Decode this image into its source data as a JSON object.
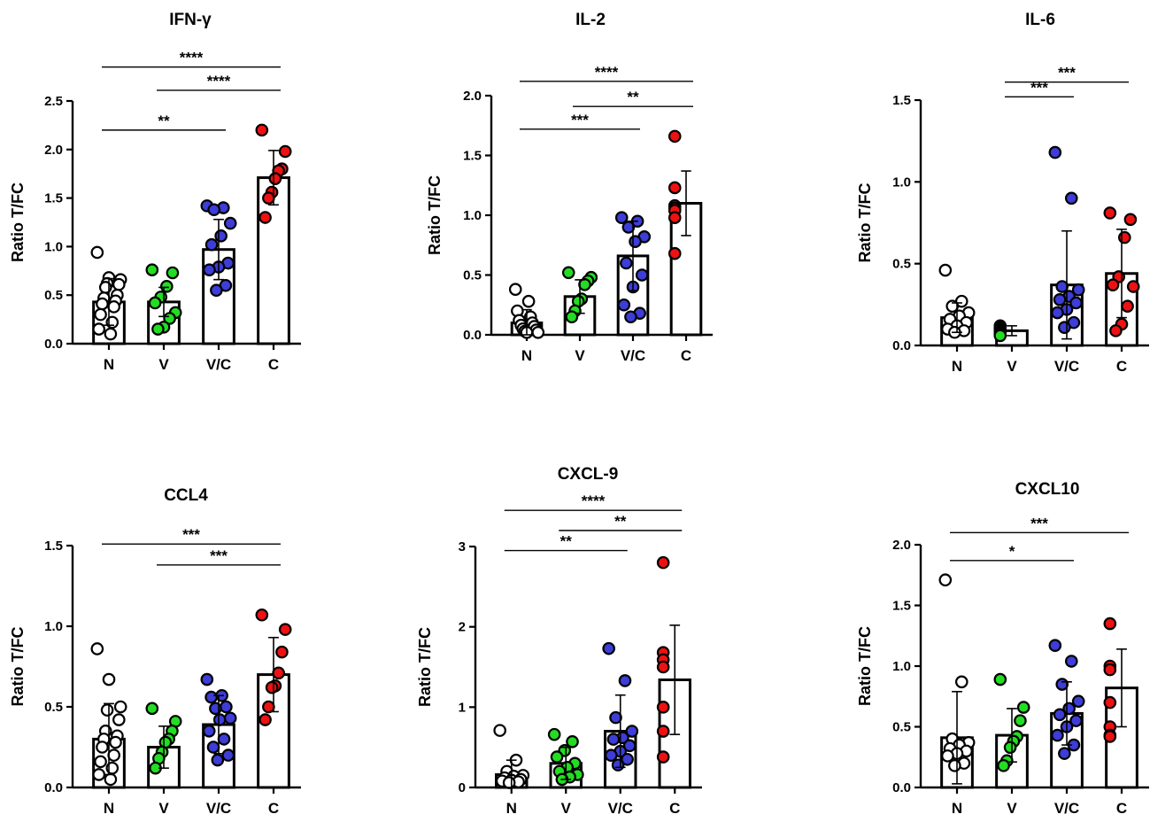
{
  "figure": {
    "background": "#ffffff"
  },
  "colors": {
    "N": "#ffffff",
    "V": "#22dd22",
    "V/C": "#3d3dd8",
    "C": "#ee1111"
  },
  "chart_data": [
    {
      "type": "bar",
      "title": "IFN-γ",
      "ylabel": "Ratio T/FC",
      "xlabel": "",
      "categories": [
        "N",
        "V",
        "V/C",
        "C"
      ],
      "ylim": [
        0,
        2.5
      ],
      "yticks": [
        0.0,
        0.5,
        1.0,
        1.5,
        2.0,
        2.5
      ],
      "ytick_labels": [
        "0.0",
        "0.5",
        "1.0",
        "1.5",
        "2.0",
        "2.5"
      ],
      "values": [
        0.43,
        0.43,
        0.97,
        1.71
      ],
      "sd": [
        0.24,
        0.15,
        0.31,
        0.28
      ],
      "points": [
        [
          0.94,
          0.68,
          0.66,
          0.62,
          0.61,
          0.58,
          0.5,
          0.47,
          0.44,
          0.41,
          0.38,
          0.3,
          0.22,
          0.15,
          0.1
        ],
        [
          0.76,
          0.73,
          0.59,
          0.48,
          0.42,
          0.32,
          0.26,
          0.17,
          0.15
        ],
        [
          1.42,
          1.4,
          1.38,
          1.24,
          1.11,
          1.02,
          0.83,
          0.79,
          0.76,
          0.6,
          0.55
        ],
        [
          2.2,
          1.98,
          1.8,
          1.78,
          1.7,
          1.56,
          1.5,
          1.3
        ]
      ],
      "significance": [
        {
          "from": "N",
          "to": "V/C",
          "label": "**",
          "y": 2.2
        },
        {
          "from": "V",
          "to": "C",
          "label": "****",
          "y": 2.61
        },
        {
          "from": "N",
          "to": "C",
          "label": "****",
          "y": 2.85
        }
      ]
    },
    {
      "type": "bar",
      "title": "IL-2",
      "ylabel": "Ratio T/FC",
      "xlabel": "",
      "categories": [
        "N",
        "V",
        "V/C",
        "C"
      ],
      "ylim": [
        0,
        2.0
      ],
      "yticks": [
        0.0,
        0.5,
        1.0,
        1.5,
        2.0
      ],
      "ytick_labels": [
        "0.0",
        "0.5",
        "1.0",
        "1.5",
        "2.0"
      ],
      "values": [
        0.1,
        0.32,
        0.66,
        1.1
      ],
      "sd": [
        0.11,
        0.14,
        0.29,
        0.27
      ],
      "points": [
        [
          0.38,
          0.28,
          0.2,
          0.15,
          0.12,
          0.1,
          0.08,
          0.07,
          0.05,
          0.04,
          0.03,
          0.02,
          0.02
        ],
        [
          0.52,
          0.48,
          0.45,
          0.42,
          0.3,
          0.28,
          0.2,
          0.15
        ],
        [
          0.98,
          0.95,
          0.9,
          0.82,
          0.78,
          0.6,
          0.5,
          0.4,
          0.25,
          0.18,
          0.15
        ],
        [
          1.66,
          1.23,
          1.08,
          1.06,
          1.04,
          0.98,
          0.68
        ]
      ],
      "significance": [
        {
          "from": "N",
          "to": "V/C",
          "label": "***",
          "y": 1.72
        },
        {
          "from": "V",
          "to": "C",
          "label": "**",
          "y": 1.91
        },
        {
          "from": "N",
          "to": "C",
          "label": "****",
          "y": 2.12
        }
      ]
    },
    {
      "type": "bar",
      "title": "IL-6",
      "ylabel": "Ratio T/FC",
      "xlabel": "",
      "categories": [
        "N",
        "V",
        "V/C",
        "C"
      ],
      "ylim": [
        0,
        1.5
      ],
      "yticks": [
        0.0,
        0.5,
        1.0,
        1.5
      ],
      "ytick_labels": [
        "0.0",
        "0.5",
        "1.0",
        "1.5"
      ],
      "values": [
        0.17,
        0.09,
        0.37,
        0.44
      ],
      "sd": [
        0.09,
        0.03,
        0.33,
        0.27
      ],
      "points": [
        [
          0.46,
          0.27,
          0.24,
          0.2,
          0.18,
          0.16,
          0.14,
          0.12,
          0.1,
          0.09,
          0.08
        ],
        [
          0.12,
          0.11,
          0.1,
          0.09,
          0.08,
          0.07,
          0.06
        ],
        [
          1.18,
          0.9,
          0.36,
          0.34,
          0.3,
          0.28,
          0.26,
          0.22,
          0.2,
          0.14,
          0.11
        ],
        [
          0.81,
          0.77,
          0.66,
          0.42,
          0.37,
          0.36,
          0.24,
          0.13,
          0.09
        ]
      ],
      "significance": [
        {
          "from": "V",
          "to": "V/C",
          "label": "***",
          "y": 1.52
        },
        {
          "from": "V",
          "to": "C",
          "label": "***",
          "y": 1.61
        }
      ]
    },
    {
      "type": "bar",
      "title": "CCL4",
      "ylabel": "Ratio T/FC",
      "xlabel": "",
      "categories": [
        "N",
        "V",
        "V/C",
        "C"
      ],
      "ylim": [
        0,
        1.5
      ],
      "yticks": [
        0.0,
        0.5,
        1.0,
        1.5
      ],
      "ytick_labels": [
        "0.0",
        "0.5",
        "1.0",
        "1.5"
      ],
      "values": [
        0.3,
        0.25,
        0.39,
        0.7
      ],
      "sd": [
        0.22,
        0.13,
        0.18,
        0.23
      ],
      "points": [
        [
          0.86,
          0.67,
          0.5,
          0.48,
          0.42,
          0.35,
          0.32,
          0.3,
          0.28,
          0.25,
          0.2,
          0.16,
          0.12,
          0.08,
          0.05
        ],
        [
          0.49,
          0.41,
          0.35,
          0.3,
          0.28,
          0.22,
          0.18,
          0.12
        ],
        [
          0.67,
          0.57,
          0.56,
          0.5,
          0.49,
          0.43,
          0.42,
          0.35,
          0.3,
          0.25,
          0.2,
          0.17
        ],
        [
          1.07,
          0.98,
          0.84,
          0.71,
          0.63,
          0.62,
          0.5,
          0.42
        ]
      ],
      "significance": [
        {
          "from": "V",
          "to": "C",
          "label": "***",
          "y": 1.38
        },
        {
          "from": "N",
          "to": "C",
          "label": "***",
          "y": 1.51
        }
      ]
    },
    {
      "type": "bar",
      "title": "CXCL-9",
      "ylabel": "Ratio T/FC",
      "xlabel": "",
      "categories": [
        "N",
        "V",
        "V/C",
        "C"
      ],
      "ylim": [
        0,
        3
      ],
      "yticks": [
        0,
        1,
        2,
        3
      ],
      "ytick_labels": [
        "0",
        "1",
        "2",
        "3"
      ],
      "values": [
        0.16,
        0.3,
        0.7,
        1.34
      ],
      "sd": [
        0.18,
        0.2,
        0.45,
        0.68
      ],
      "points": [
        [
          0.71,
          0.34,
          0.2,
          0.15,
          0.14,
          0.12,
          0.1,
          0.09,
          0.08,
          0.07,
          0.06
        ],
        [
          0.66,
          0.57,
          0.46,
          0.38,
          0.3,
          0.25,
          0.2,
          0.16,
          0.13,
          0.1
        ],
        [
          1.73,
          1.33,
          0.87,
          0.7,
          0.62,
          0.6,
          0.52,
          0.45,
          0.4,
          0.35,
          0.28
        ],
        [
          2.8,
          1.68,
          1.59,
          1.5,
          1.0,
          0.7,
          0.38
        ]
      ],
      "significance": [
        {
          "from": "N",
          "to": "V/C",
          "label": "**",
          "y": 2.95
        },
        {
          "from": "V",
          "to": "C",
          "label": "**",
          "y": 3.2
        },
        {
          "from": "N",
          "to": "C",
          "label": "****",
          "y": 3.45
        }
      ]
    },
    {
      "type": "bar",
      "title": "CXCL10",
      "ylabel": "Ratio T/FC",
      "xlabel": "",
      "categories": [
        "N",
        "V",
        "V/C",
        "C"
      ],
      "ylim": [
        0,
        2.0
      ],
      "yticks": [
        0.0,
        0.5,
        1.0,
        1.5,
        2.0
      ],
      "ytick_labels": [
        "0.0",
        "0.5",
        "1.0",
        "1.5",
        "2.0"
      ],
      "values": [
        0.41,
        0.43,
        0.61,
        0.82
      ],
      "sd": [
        0.38,
        0.22,
        0.26,
        0.32
      ],
      "points": [
        [
          1.71,
          0.87,
          0.4,
          0.37,
          0.35,
          0.32,
          0.3,
          0.28,
          0.26,
          0.2,
          0.18
        ],
        [
          0.89,
          0.66,
          0.55,
          0.42,
          0.38,
          0.33,
          0.22,
          0.18
        ],
        [
          1.17,
          1.04,
          0.85,
          0.71,
          0.65,
          0.6,
          0.55,
          0.5,
          0.43,
          0.35,
          0.28
        ],
        [
          1.35,
          1.0,
          0.97,
          0.7,
          0.5,
          0.43,
          0.42
        ]
      ],
      "significance": [
        {
          "from": "N",
          "to": "V/C",
          "label": "*",
          "y": 1.87
        },
        {
          "from": "N",
          "to": "C",
          "label": "***",
          "y": 2.1
        }
      ]
    }
  ]
}
